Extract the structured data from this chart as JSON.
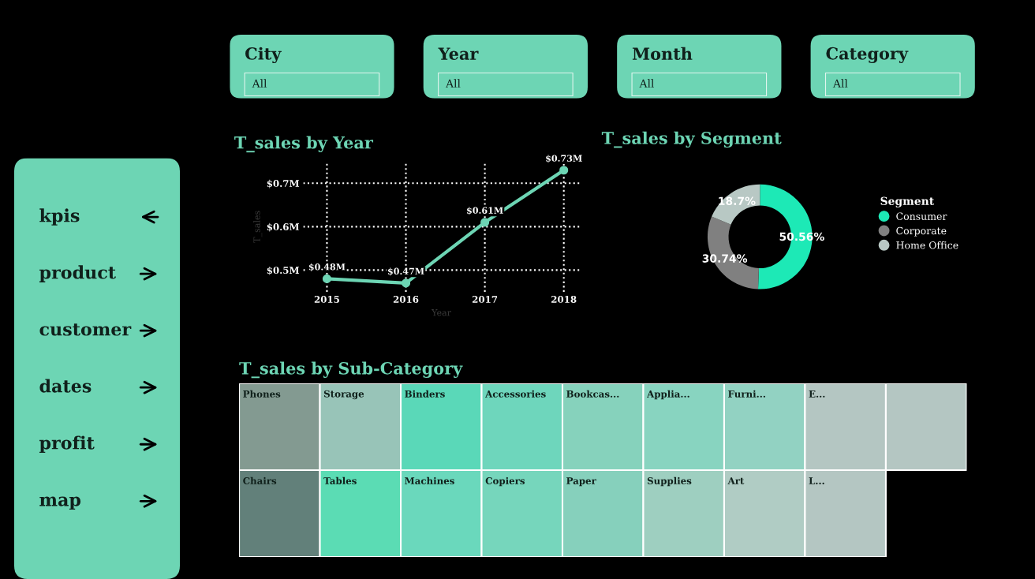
{
  "chart_data": [
    {
      "type": "other",
      "annotations": [
        "kpis",
        "product",
        "customer",
        "dates",
        "profit",
        "map"
      ]
    },
    {
      "type": "other",
      "annotations": [
        "City",
        "All",
        "Year",
        "All",
        "Month",
        "All",
        "Category",
        "All"
      ]
    },
    {
      "type": "line",
      "title": "T_sales by Year",
      "xlabel": "Year",
      "ylabel": "T_sales",
      "categories": [
        "2015",
        "2016",
        "2017",
        "2018"
      ],
      "series": [
        {
          "color": "#6dd5b4",
          "values": [
            0.48,
            0.47,
            0.61,
            0.73
          ],
          "value_labels": [
            "$0.48M",
            "$0.47M",
            "$0.61M",
            "$0.73M"
          ]
        }
      ],
      "ylim": [
        0.45,
        0.75
      ],
      "yticks": [
        {
          "value": 0.5,
          "label": "$0.5M"
        },
        {
          "value": 0.6,
          "label": "$0.6M"
        },
        {
          "value": 0.7,
          "label": "$0.7M"
        }
      ],
      "grid": true,
      "marker": "circle",
      "line_style": "solid"
    },
    {
      "type": "donut",
      "title": "T_sales by Segment",
      "legend_title": "Segment",
      "legend": "right",
      "categories": [
        "Consumer",
        "Corporate",
        "Home Office"
      ],
      "values": [
        50.56,
        30.74,
        18.7
      ],
      "value_labels": [
        "50.56%",
        "30.74%",
        "18.7%"
      ],
      "colors": [
        "#1de9b6",
        "#808080",
        "#b8c8c4"
      ]
    },
    {
      "type": "other",
      "title": "T_sales by Sub-Category",
      "categories": [
        "Phones",
        "Chairs",
        "Storage",
        "Tables",
        "Binders",
        "Machines",
        "Accessories",
        "Copiers",
        "Bookcas...",
        "Paper",
        "Applia...",
        "Supplies",
        "Furni...",
        "Art",
        "E...",
        "L...",
        null
      ],
      "colors": [
        "#839a91",
        "#62807a",
        "#98c4b8",
        "#5bdcb4",
        "#5ad8b8",
        "#6ad8bc",
        "#6ed6bc",
        "#76d6bc",
        "#86d2bc",
        "#86d0bc",
        "#88d4c0",
        "#9ecfc0",
        "#92d2c2",
        "#b0ccc4",
        "#b4c6c2",
        "#b4c6c2",
        "#b4c6c2"
      ]
    }
  ]
}
